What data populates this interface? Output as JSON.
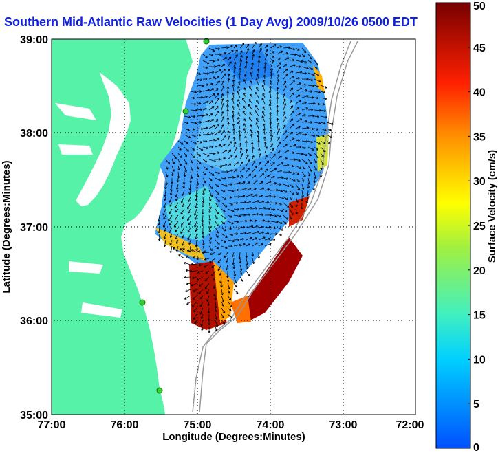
{
  "title": "Southern Mid-Atlantic Raw Velocities (1 Day Avg) 2009/10/26 0500 EDT",
  "chart_data": {
    "type": "heatmap",
    "title": "Southern Mid-Atlantic Raw Velocities (1 Day Avg) 2009/10/26 0500 EDT",
    "xlabel": "Longitude (Degrees:Minutes)",
    "ylabel": "Latitude (Degrees:Minutes)",
    "x_ticks": [
      "77:00",
      "76:00",
      "75:00",
      "74:00",
      "73:00",
      "72:00"
    ],
    "y_ticks": [
      "39:00",
      "38:00",
      "37:00",
      "36:00",
      "35:00"
    ],
    "xlim": [
      -77,
      -72
    ],
    "ylim": [
      35,
      39
    ],
    "grid": true,
    "colorbar": {
      "label": "Surface Velocity (cm/s)",
      "min": 0,
      "max": 50,
      "ticks": [
        0,
        5,
        10,
        15,
        20,
        25,
        30,
        35,
        40,
        45,
        50
      ]
    }
  },
  "colors": {
    "land": "#55f2a8",
    "title": "#1020e0",
    "low": "#1060ff",
    "high": "#800000"
  }
}
